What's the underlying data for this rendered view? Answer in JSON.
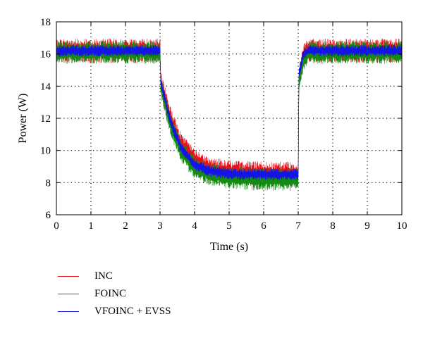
{
  "chart_data": {
    "type": "line",
    "title": "",
    "xlabel": "Time (s)",
    "ylabel": "Power (W)",
    "xlim": [
      0,
      10
    ],
    "ylim": [
      6,
      18
    ],
    "xticks": [
      "0",
      "1",
      "2",
      "3",
      "4",
      "5",
      "6",
      "7",
      "8",
      "9",
      "10"
    ],
    "yticks": [
      "6",
      "8",
      "10",
      "12",
      "14",
      "16",
      "18"
    ],
    "grid": true,
    "legend_position": "below",
    "series": [
      {
        "name": "INC",
        "color": "#e8101a",
        "x": [
          0,
          3,
          3.02,
          3.3,
          3.6,
          4.0,
          4.5,
          5.0,
          5.5,
          6.0,
          7.0,
          7.02,
          7.15,
          7.3,
          10
        ],
        "y": [
          16.2,
          16.2,
          14.2,
          12.0,
          10.4,
          9.3,
          8.8,
          8.65,
          8.6,
          8.55,
          8.55,
          14.5,
          15.9,
          16.2,
          16.2
        ],
        "noise": 0.75
      },
      {
        "name": "FOINC",
        "color": "#148c14",
        "x": [
          0,
          3,
          3.02,
          3.3,
          3.6,
          4.0,
          4.5,
          5.0,
          5.5,
          6.0,
          7.0,
          7.02,
          7.15,
          7.3,
          10
        ],
        "y": [
          16.1,
          16.1,
          14.0,
          11.6,
          10.0,
          8.9,
          8.5,
          8.3,
          8.25,
          8.2,
          8.2,
          14.2,
          15.6,
          16.1,
          16.1
        ],
        "noise": 0.7
      },
      {
        "name": "VFOINC + EVSS",
        "color": "#1414e6",
        "x": [
          0,
          3,
          3.02,
          3.3,
          3.6,
          4.0,
          4.5,
          5.0,
          5.5,
          6.0,
          7.0,
          7.02,
          7.15,
          7.3,
          10
        ],
        "y": [
          16.2,
          16.2,
          14.3,
          11.8,
          10.2,
          9.1,
          8.7,
          8.55,
          8.5,
          8.5,
          8.5,
          14.8,
          16.0,
          16.2,
          16.2
        ],
        "noise": 0.35
      }
    ]
  }
}
